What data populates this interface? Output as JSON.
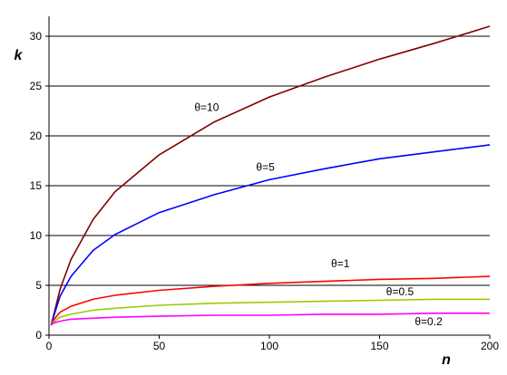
{
  "chart_data": {
    "type": "line",
    "title": "",
    "xlabel": "n",
    "ylabel": "k",
    "xlim": [
      0,
      200
    ],
    "ylim": [
      0,
      32
    ],
    "xticks": [
      0,
      50,
      100,
      150,
      200
    ],
    "yticks": [
      0,
      5,
      10,
      15,
      20,
      25,
      30
    ],
    "grid": "horizontal",
    "legend": "none",
    "x": [
      1,
      2,
      5,
      10,
      20,
      30,
      50,
      75,
      100,
      125,
      150,
      175,
      200
    ],
    "series": [
      {
        "name": "θ=10",
        "color": "#800000",
        "values": [
          1.0,
          1.9,
          4.6,
          7.6,
          11.6,
          14.4,
          18.1,
          21.4,
          23.9,
          25.9,
          27.7,
          29.3,
          31.0
        ]
      },
      {
        "name": "θ=5",
        "color": "#0000ff",
        "values": [
          1.0,
          1.8,
          3.9,
          5.9,
          8.5,
          10.1,
          12.3,
          14.1,
          15.6,
          16.7,
          17.7,
          18.4,
          19.1
        ]
      },
      {
        "name": "θ=1",
        "color": "#ff0000",
        "values": [
          1.0,
          1.5,
          2.3,
          2.9,
          3.6,
          4.0,
          4.5,
          4.9,
          5.2,
          5.4,
          5.6,
          5.7,
          5.9
        ]
      },
      {
        "name": "θ=0.5",
        "color": "#99cc00",
        "values": [
          1.0,
          1.3,
          1.8,
          2.1,
          2.5,
          2.7,
          3.0,
          3.2,
          3.3,
          3.4,
          3.5,
          3.6,
          3.6
        ]
      },
      {
        "name": "θ=0.2",
        "color": "#ff00ff",
        "values": [
          1.0,
          1.2,
          1.4,
          1.6,
          1.7,
          1.8,
          1.9,
          2.0,
          2.0,
          2.1,
          2.1,
          2.2,
          2.2
        ]
      }
    ]
  }
}
